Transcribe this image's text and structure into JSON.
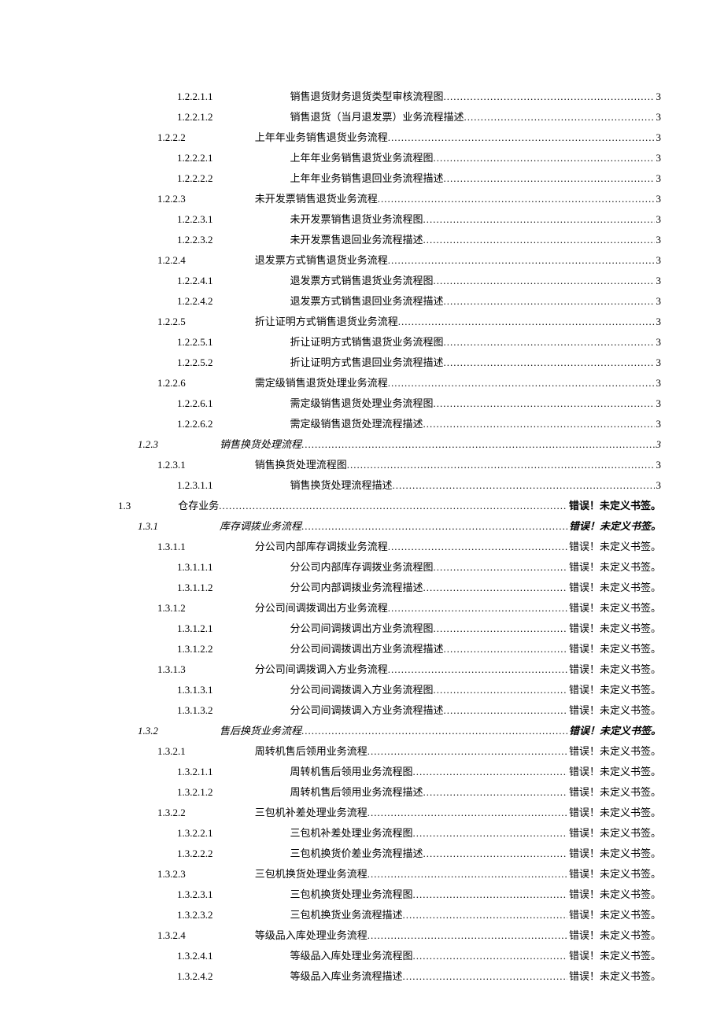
{
  "page_number_default": "3",
  "error_text": "错误！未定义书签。",
  "error_text_bold": "错误！未定义书签。",
  "entries": [
    {
      "level": 4,
      "num": "1.2.2.1.1",
      "title": "销售退货财务退货类型审核流程图",
      "page": "3"
    },
    {
      "level": 4,
      "num": "1.2.2.1.2",
      "title": "销售退货（当月退发票）业务流程描述",
      "page": "3"
    },
    {
      "level": 3,
      "num": "1.2.2.2",
      "title": "上年年业务销售退货业务流程",
      "page": "3"
    },
    {
      "level": 4,
      "num": "1.2.2.2.1",
      "title": "上年年业务销售退货业务流程图",
      "page": "3"
    },
    {
      "level": 4,
      "num": "1.2.2.2.2",
      "title": "上年年业务销售退回业务流程描述",
      "page": "3"
    },
    {
      "level": 3,
      "num": "1.2.2.3",
      "title": "未开发票销售退货业务流程",
      "page": "3"
    },
    {
      "level": 4,
      "num": "1.2.2.3.1",
      "title": "未开发票销售退货业务流程图",
      "page": "3"
    },
    {
      "level": 4,
      "num": "1.2.2.3.2",
      "title": "未开发票售退回业务流程描述",
      "page": "3"
    },
    {
      "level": 3,
      "num": "1.2.2.4",
      "title": "退发票方式销售退货业务流程",
      "page": "3"
    },
    {
      "level": 4,
      "num": "1.2.2.4.1",
      "title": "退发票方式销售退货业务流程图",
      "page": "3"
    },
    {
      "level": 4,
      "num": "1.2.2.4.2",
      "title": "退发票方式销售退回业务流程描述",
      "page": "3"
    },
    {
      "level": 3,
      "num": "1.2.2.5",
      "title": "折让证明方式销售退货业务流程",
      "page": "3"
    },
    {
      "level": 4,
      "num": "1.2.2.5.1",
      "title": "折让证明方式销售退货业务流程图",
      "page": "3"
    },
    {
      "level": 4,
      "num": "1.2.2.5.2",
      "title": "折让证明方式售退回业务流程描述",
      "page": "3"
    },
    {
      "level": 3,
      "num": "1.2.2.6",
      "title": "需定级销售退货处理业务流程",
      "page": "3"
    },
    {
      "level": 4,
      "num": "1.2.2.6.1",
      "title": "需定级销售退货处理业务流程图",
      "page": "3"
    },
    {
      "level": 4,
      "num": "1.2.2.6.2",
      "title": "需定级销售退货处理流程描述",
      "page": "3"
    },
    {
      "level": 2,
      "num": "1.2.3",
      "title": "销售换货处理流程",
      "page": "3",
      "italic": true
    },
    {
      "level": 3,
      "num": "1.2.3.1",
      "title": "销售换货处理流程图",
      "page": "3"
    },
    {
      "level": 4,
      "num": "1.2.3.1.1",
      "title": "销售换货处理流程描述",
      "page": "3"
    },
    {
      "level": 1,
      "num": "1.3",
      "title": "仓存业务",
      "page": "错误！未定义书签。",
      "bold_page": true
    },
    {
      "level": 2,
      "num": "1.3.1",
      "title": "库存调拨业务流程",
      "page": "错误！未定义书签。",
      "italic": true,
      "bold_page": true
    },
    {
      "level": 3,
      "num": "1.3.1.1",
      "title": "分公司内部库存调拨业务流程",
      "page": "错误！未定义书签。"
    },
    {
      "level": 4,
      "num": "1.3.1.1.1",
      "title": "分公司内部库存调拨业务流程图",
      "page": "错误！未定义书签。"
    },
    {
      "level": 4,
      "num": "1.3.1.1.2",
      "title": "分公司内部调拨业务流程描述",
      "page": "错误！未定义书签。"
    },
    {
      "level": 3,
      "num": "1.3.1.2",
      "title": "分公司间调拨调出方业务流程",
      "page": "错误！未定义书签。"
    },
    {
      "level": 4,
      "num": "1.3.1.2.1",
      "title": "分公司间调拨调出方业务流程图",
      "page": "错误！未定义书签。"
    },
    {
      "level": 4,
      "num": "1.3.1.2.2",
      "title": "分公司间调拨调出方业务流程描述",
      "page": "错误！未定义书签。"
    },
    {
      "level": 3,
      "num": "1.3.1.3",
      "title": "分公司间调拨调入方业务流程",
      "page": "错误！未定义书签。"
    },
    {
      "level": 4,
      "num": "1.3.1.3.1",
      "title": "分公司间调拨调入方业务流程图",
      "page": "错误！未定义书签。"
    },
    {
      "level": 4,
      "num": "1.3.1.3.2",
      "title": "分公司间调拨调入方业务流程描述",
      "page": "错误！未定义书签。"
    },
    {
      "level": 2,
      "num": "1.3.2",
      "title": "售后换货业务流程",
      "page": "错误！未定义书签。",
      "italic": true,
      "bold_page": true
    },
    {
      "level": 3,
      "num": "1.3.2.1",
      "title": "周转机售后领用业务流程",
      "page": "错误！未定义书签。"
    },
    {
      "level": 4,
      "num": "1.3.2.1.1",
      "title": "周转机售后领用业务流程图",
      "page": "错误！未定义书签。"
    },
    {
      "level": 4,
      "num": "1.3.2.1.2",
      "title": "周转机售后领用业务流程描述",
      "page": "错误！未定义书签。"
    },
    {
      "level": 3,
      "num": "1.3.2.2",
      "title": "三包机补差处理业务流程",
      "page": "错误！未定义书签。"
    },
    {
      "level": 4,
      "num": "1.3.2.2.1",
      "title": "三包机补差处理业务流程图",
      "page": "错误！未定义书签。"
    },
    {
      "level": 4,
      "num": "1.3.2.2.2",
      "title": "三包机换货价差业务流程描述",
      "page": "错误！未定义书签。"
    },
    {
      "level": 3,
      "num": "1.3.2.3",
      "title": "三包机换货处理业务流程",
      "page": "错误！未定义书签。"
    },
    {
      "level": 4,
      "num": "1.3.2.3.1",
      "title": "三包机换货处理业务流程图",
      "page": "错误！未定义书签。"
    },
    {
      "level": 4,
      "num": "1.3.2.3.2",
      "title": "三包机换货业务流程描述",
      "page": "错误！未定义书签。"
    },
    {
      "level": 3,
      "num": "1.3.2.4",
      "title": "等级品入库处理业务流程",
      "page": "错误！未定义书签。"
    },
    {
      "level": 4,
      "num": "1.3.2.4.1",
      "title": "等级品入库处理业务流程图",
      "page": "错误！未定义书签。"
    },
    {
      "level": 4,
      "num": "1.3.2.4.2",
      "title": "等级品入库业务流程描述",
      "page": "错误！未定义书签。"
    }
  ]
}
